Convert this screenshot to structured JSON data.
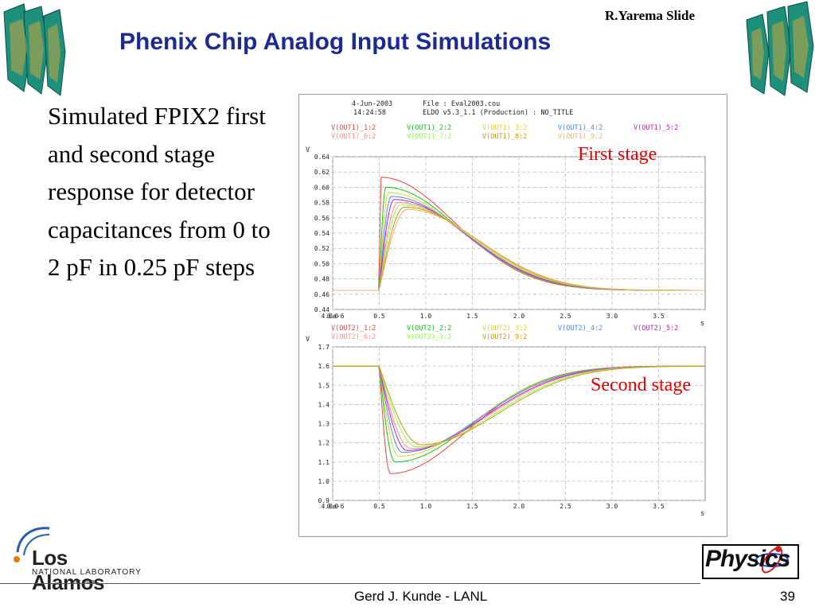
{
  "slide": {
    "author": "R.Yarema Slide",
    "title": "Phenix Chip Analog Input Simulations",
    "body": "Simulated FPIX2 first and second stage response for detector capacitances from 0 to 2 pF in 0.25 pF steps",
    "first_stage_label": "First stage",
    "second_stage_label": "Second stage",
    "footer_center": "Gerd J. Kunde - LANL",
    "page_number": "39"
  },
  "logo_lanl": {
    "name": "Los Alamos",
    "sub": "NATIONAL LABORATORY",
    "est": "EST.1943"
  },
  "logo_physics": {
    "word": "Physics"
  },
  "plot_header": {
    "date": "4-Jun-2003",
    "time": "14:24:58",
    "file": "File : Eval2003.cou",
    "version": "ELDO v5.3_1.1 (Production) : NO_TITLE"
  },
  "colors": {
    "title": "#1d2a8f",
    "stage_label": "#e60000",
    "series": [
      "#e8453c",
      "#18c018",
      "#e0d020",
      "#4488ff",
      "#c020c0",
      "#ff8888",
      "#88ff44",
      "#cc9900",
      "#f0b070"
    ]
  },
  "chart_data": [
    {
      "type": "line",
      "y_unit": "V",
      "x_unit": "s",
      "x_ticks": [
        "0.0",
        "0.5",
        "1.0",
        "1.5",
        "2.0",
        "2.5",
        "3.0",
        "3.5",
        "4.0e-6"
      ],
      "y_ticks": [
        "0.64",
        "0.62",
        "0.60",
        "0.58",
        "0.56",
        "0.54",
        "0.52",
        "0.50",
        "0.48",
        "0.46",
        "0.44"
      ],
      "xlim": [
        0,
        4e-06
      ],
      "ylim": [
        0.44,
        0.64
      ],
      "grid": true,
      "legend": [
        "V(OUT1)_1:2",
        "V(OUT1)_2:2",
        "V(OUT1)_3:2",
        "V(OUT1)_4:2",
        "V(OUT1)_5:2",
        "V(OUT1)_6:2",
        "V(OUT1)_7:2",
        "V(OUT1)_8:2",
        "V(OUT1)_9:2"
      ],
      "baseline": 0.465,
      "step_x": 5e-07,
      "series": [
        {
          "name": "V(OUT1)_1:2",
          "peak_x": 5.2e-07,
          "peak_y": 0.613
        },
        {
          "name": "V(OUT1)_2:2",
          "peak_x": 5.7e-07,
          "peak_y": 0.6
        },
        {
          "name": "V(OUT1)_3:2",
          "peak_x": 6e-07,
          "peak_y": 0.593
        },
        {
          "name": "V(OUT1)_4:2",
          "peak_x": 6.3e-07,
          "peak_y": 0.588
        },
        {
          "name": "V(OUT1)_5:2",
          "peak_x": 6.6e-07,
          "peak_y": 0.584
        },
        {
          "name": "V(OUT1)_6:2",
          "peak_x": 7e-07,
          "peak_y": 0.58
        },
        {
          "name": "V(OUT1)_7:2",
          "peak_x": 7.3e-07,
          "peak_y": 0.577
        },
        {
          "name": "V(OUT1)_8:2",
          "peak_x": 7.7e-07,
          "peak_y": 0.574
        },
        {
          "name": "V(OUT1)_9:2",
          "peak_x": 8e-07,
          "peak_y": 0.571
        }
      ]
    },
    {
      "type": "line",
      "y_unit": "V",
      "x_unit": "s",
      "x_ticks": [
        "0.0",
        "0.5",
        "1.0",
        "1.5",
        "2.0",
        "2.5",
        "3.0",
        "3.5",
        "4.0e-6"
      ],
      "y_ticks": [
        "1.7",
        "1.6",
        "1.5",
        "1.4",
        "1.3",
        "1.2",
        "1.1",
        "1.0",
        "0.9"
      ],
      "xlim": [
        0,
        4e-06
      ],
      "ylim": [
        0.9,
        1.7
      ],
      "grid": true,
      "legend": [
        "V(OUT2)_1:2",
        "V(OUT2)_2:2",
        "V(OUT2)_3:2",
        "V(OUT2)_4:2",
        "V(OUT2)_5:2",
        "V(OUT2)_6:2",
        "V(OUT2)_8:2",
        "V(OUT2)_9:2"
      ],
      "baseline": 1.6,
      "step_x": 5e-07,
      "series": [
        {
          "name": "V(OUT2)_1:2",
          "min_x": 6.2e-07,
          "min_y": 1.04
        },
        {
          "name": "V(OUT2)_2:2",
          "min_x": 6.7e-07,
          "min_y": 1.1
        },
        {
          "name": "V(OUT2)_3:2",
          "min_x": 7.1e-07,
          "min_y": 1.13
        },
        {
          "name": "V(OUT2)_4:2",
          "min_x": 7.5e-07,
          "min_y": 1.15
        },
        {
          "name": "V(OUT2)_5:2",
          "min_x": 8e-07,
          "min_y": 1.16
        },
        {
          "name": "V(OUT2)_6:2",
          "min_x": 8.4e-07,
          "min_y": 1.17
        },
        {
          "name": "V(OUT2)_8:2",
          "min_x": 9e-07,
          "min_y": 1.18
        },
        {
          "name": "V(OUT2)_9:2",
          "min_x": 9.5e-07,
          "min_y": 1.19
        }
      ]
    }
  ]
}
